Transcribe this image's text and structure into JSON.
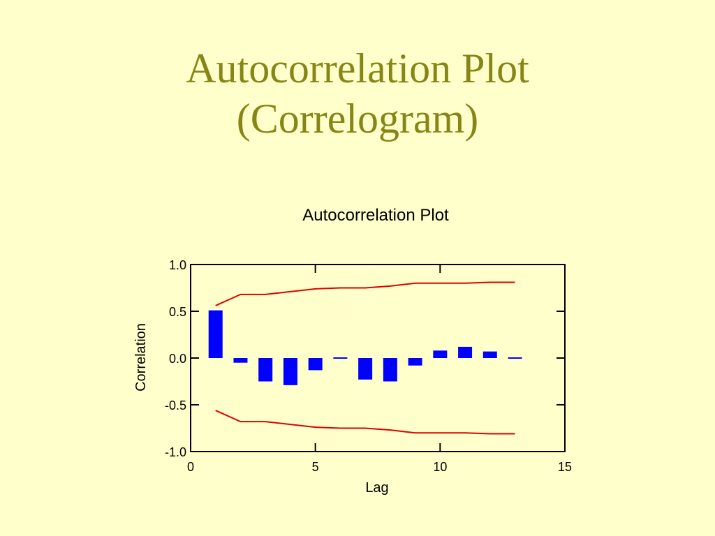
{
  "slide": {
    "title_line1": "Autocorrelation Plot",
    "title_line2": "(Correlogram)"
  },
  "colors": {
    "background": "#ffffcc",
    "title": "#868617",
    "bars": "#0000ff",
    "confidence_band": "#e00000"
  },
  "chart_data": {
    "type": "bar",
    "title": "Autocorrelation Plot",
    "xlabel": "Lag",
    "ylabel": "Correlation",
    "xlim": [
      0,
      15
    ],
    "ylim": [
      -1.0,
      1.0
    ],
    "xticks": [
      0,
      5,
      10,
      15
    ],
    "yticks": [
      -1.0,
      -0.5,
      0.0,
      0.5,
      1.0
    ],
    "ytick_labels": [
      "-1.0",
      "-0.5",
      "0.0",
      "0.5",
      "1.0"
    ],
    "grid": false,
    "series": [
      {
        "lags": [
          1,
          2,
          3,
          4,
          5,
          6,
          7,
          8,
          9,
          10,
          11,
          12,
          13
        ],
        "values": [
          0.51,
          -0.05,
          -0.25,
          -0.29,
          -0.13,
          0.0,
          -0.23,
          -0.25,
          -0.08,
          0.08,
          0.12,
          0.07,
          0.0
        ]
      }
    ],
    "confidence_band": {
      "lags": [
        1,
        2,
        3,
        4,
        5,
        6,
        7,
        8,
        9,
        10,
        11,
        12,
        13
      ],
      "upper": [
        0.56,
        0.68,
        0.68,
        0.71,
        0.74,
        0.75,
        0.75,
        0.77,
        0.8,
        0.8,
        0.8,
        0.81,
        0.81
      ],
      "lower": [
        -0.56,
        -0.68,
        -0.68,
        -0.71,
        -0.74,
        -0.75,
        -0.75,
        -0.77,
        -0.8,
        -0.8,
        -0.8,
        -0.81,
        -0.81
      ]
    }
  }
}
